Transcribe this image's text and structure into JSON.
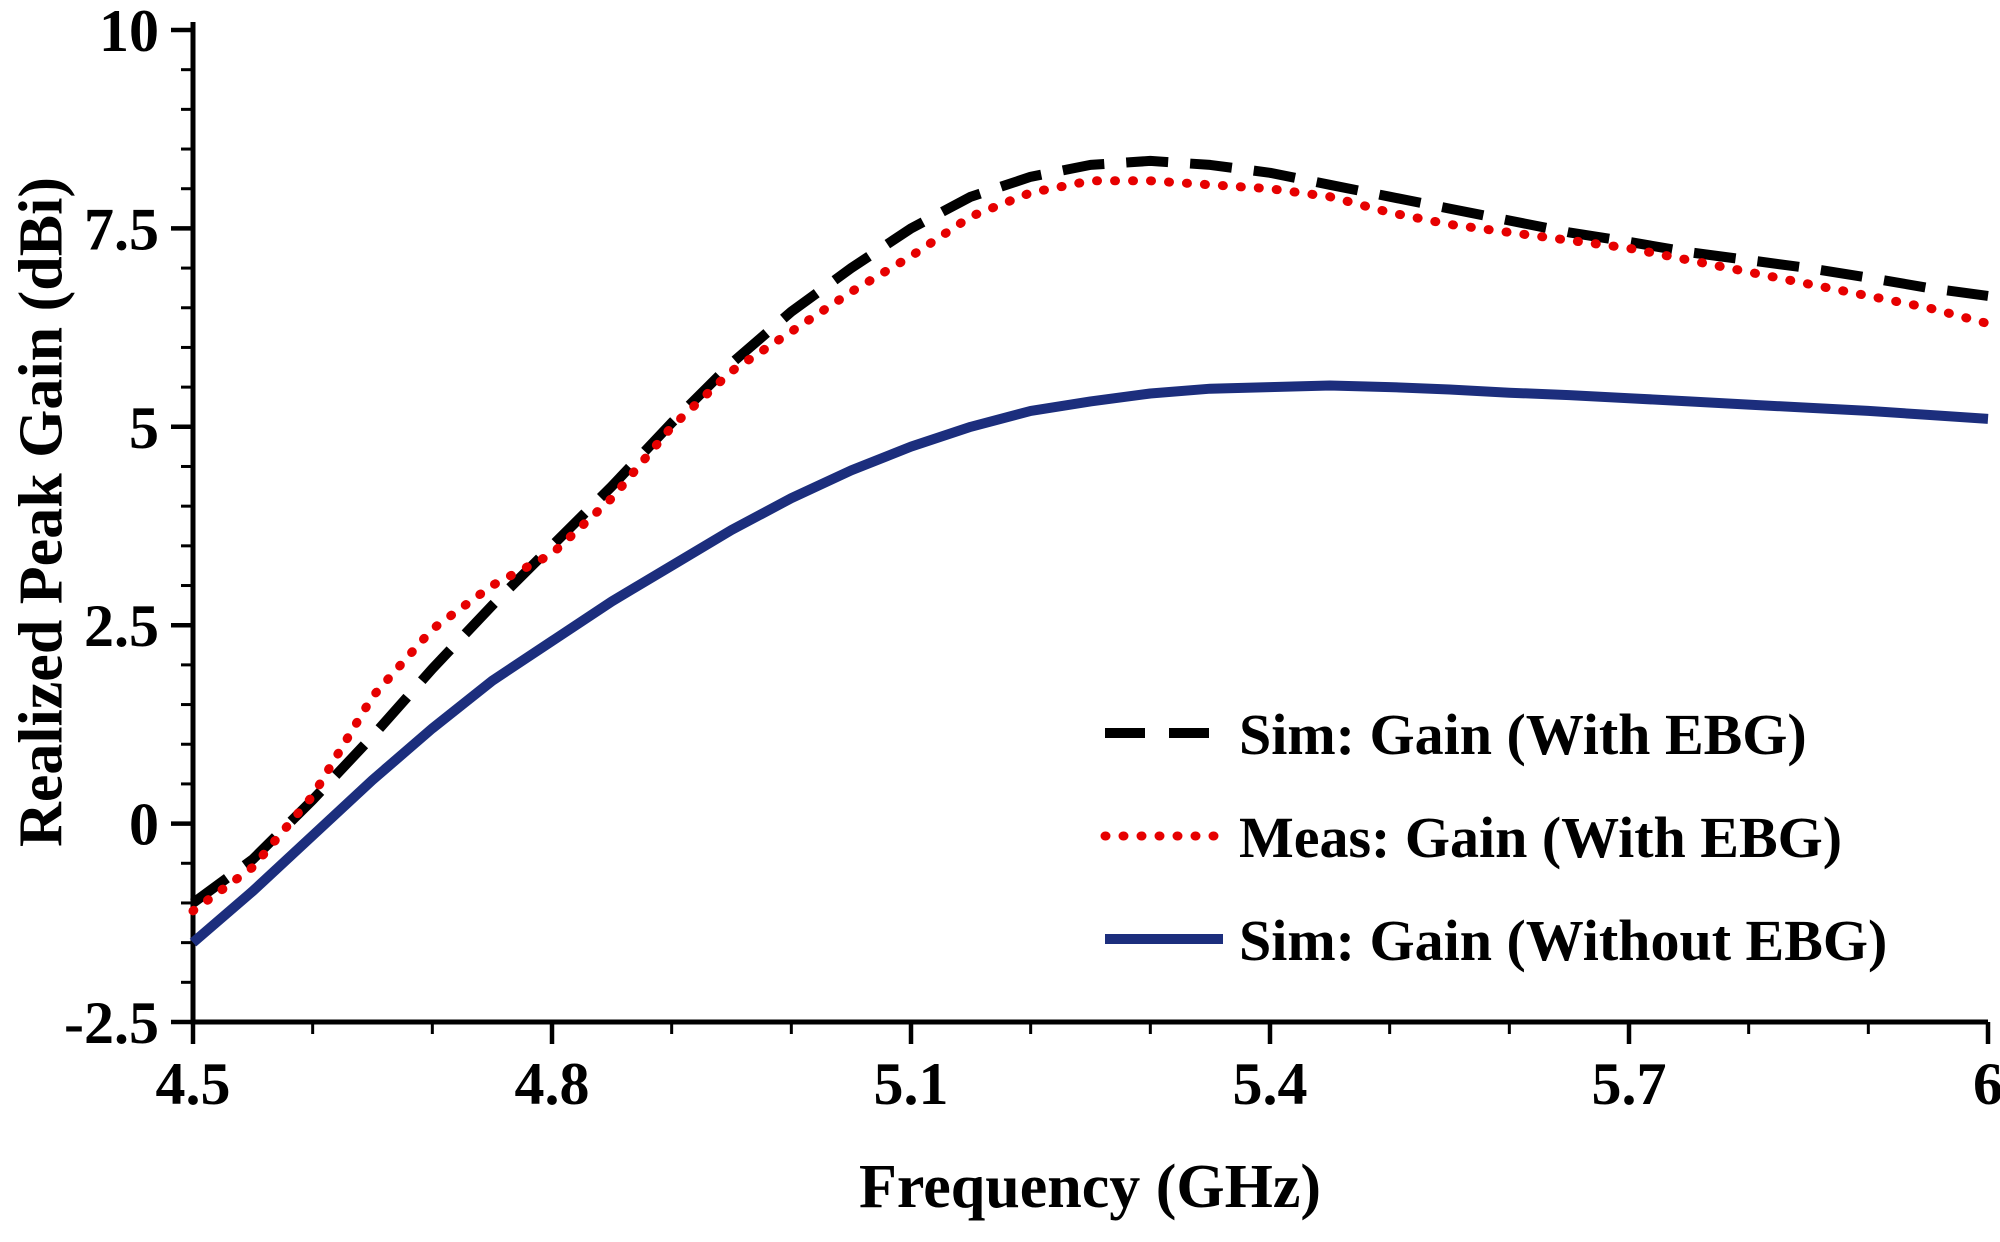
{
  "chart_data": {
    "type": "line",
    "title": "",
    "xlabel": "Frequency (GHz)",
    "ylabel": "Realized Peak Gain (dBi)",
    "xlim": [
      4.5,
      6.0
    ],
    "ylim": [
      -2.5,
      10
    ],
    "grid": false,
    "legend_position": "inside-right-bottom",
    "xticks": {
      "values": [
        4.5,
        4.8,
        5.1,
        5.4,
        5.7,
        6.0
      ],
      "labels": [
        "4.5",
        "4.8",
        "5.1",
        "5.4",
        "5.7",
        "6"
      ]
    },
    "yticks": {
      "values": [
        -2.5,
        0,
        2.5,
        5,
        7.5,
        10
      ],
      "labels": [
        "-2.5",
        "0",
        "2.5",
        "5",
        "7.5",
        "10"
      ]
    },
    "x": [
      4.5,
      4.55,
      4.6,
      4.65,
      4.7,
      4.75,
      4.8,
      4.85,
      4.9,
      4.95,
      5.0,
      5.05,
      5.1,
      5.15,
      5.2,
      5.25,
      5.3,
      5.35,
      5.4,
      5.45,
      5.5,
      5.55,
      5.6,
      5.65,
      5.7,
      5.75,
      5.8,
      5.85,
      5.9,
      5.95,
      6.0
    ],
    "series": [
      {
        "name": "Sim: Gain (With EBG)",
        "style": "dashed",
        "color": "#000000",
        "values": [
          -1.0,
          -0.45,
          0.3,
          1.1,
          1.95,
          2.75,
          3.5,
          4.25,
          5.05,
          5.8,
          6.45,
          7.0,
          7.5,
          7.9,
          8.15,
          8.3,
          8.35,
          8.3,
          8.2,
          8.05,
          7.9,
          7.75,
          7.6,
          7.45,
          7.33,
          7.2,
          7.1,
          7.0,
          6.88,
          6.75,
          6.65
        ]
      },
      {
        "name": "Meas: Gain (With EBG)",
        "style": "dotted",
        "color": "#e60000",
        "values": [
          -1.1,
          -0.55,
          0.35,
          1.6,
          2.45,
          3.0,
          3.4,
          4.1,
          5.0,
          5.7,
          6.2,
          6.7,
          7.15,
          7.65,
          7.95,
          8.1,
          8.1,
          8.05,
          8.0,
          7.9,
          7.7,
          7.55,
          7.45,
          7.35,
          7.25,
          7.1,
          6.95,
          6.8,
          6.65,
          6.5,
          6.3
        ]
      },
      {
        "name": "Sim: Gain (Without EBG)",
        "style": "solid",
        "color": "#1c2e7d",
        "values": [
          -1.5,
          -0.85,
          -0.15,
          0.55,
          1.2,
          1.8,
          2.3,
          2.8,
          3.25,
          3.7,
          4.1,
          4.45,
          4.75,
          5.0,
          5.2,
          5.32,
          5.42,
          5.48,
          5.5,
          5.52,
          5.5,
          5.47,
          5.43,
          5.4,
          5.36,
          5.32,
          5.28,
          5.24,
          5.2,
          5.15,
          5.1
        ]
      }
    ]
  }
}
